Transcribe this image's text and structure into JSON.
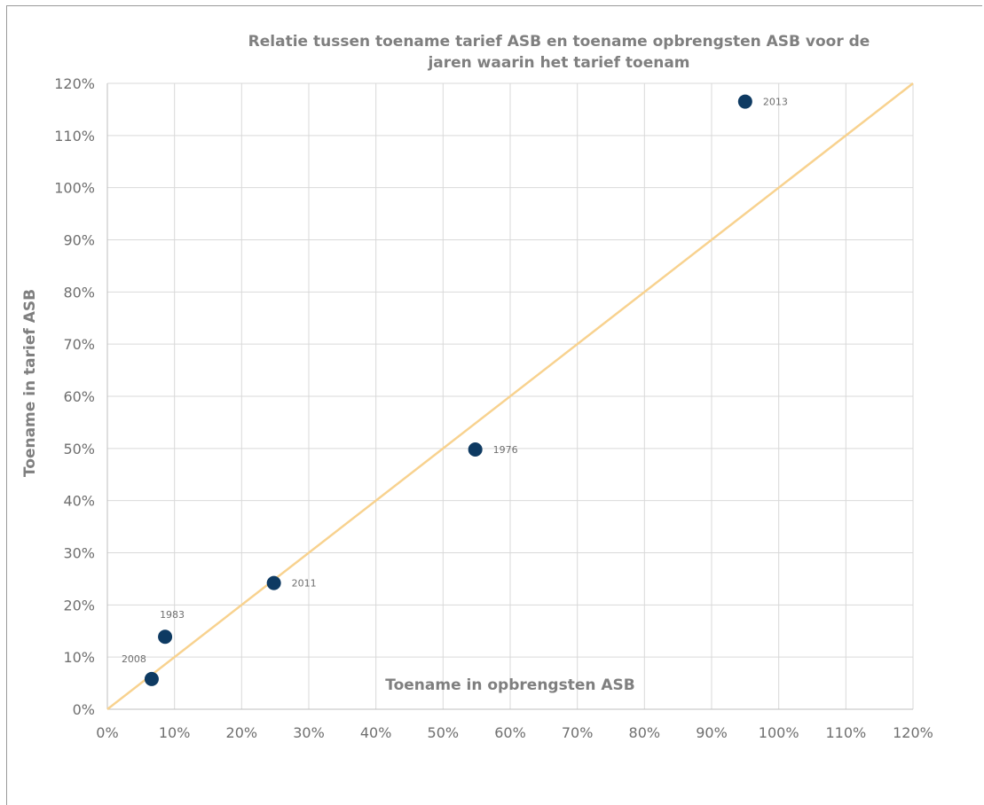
{
  "chart_data": {
    "type": "scatter",
    "title_lines": [
      "Relatie tussen toename tarief ASB en toename opbrengsten ASB voor de",
      "jaren waarin het tarief toenam"
    ],
    "xlabel": "Toename in opbrengsten ASB",
    "ylabel": "Toename in tarief ASB",
    "xlim": [
      0,
      1.2
    ],
    "ylim": [
      0,
      1.2
    ],
    "xticks": [
      0,
      0.1,
      0.2,
      0.3,
      0.4,
      0.5,
      0.6,
      0.7,
      0.8,
      0.9,
      1.0,
      1.1,
      1.2
    ],
    "yticks": [
      0,
      0.1,
      0.2,
      0.3,
      0.4,
      0.5,
      0.6,
      0.7,
      0.8,
      0.9,
      1.0,
      1.1,
      1.2
    ],
    "xtick_labels": [
      "0%",
      "10%",
      "20%",
      "30%",
      "40%",
      "50%",
      "60%",
      "70%",
      "80%",
      "90%",
      "100%",
      "110%",
      "120%"
    ],
    "ytick_labels": [
      "0%",
      "10%",
      "20%",
      "30%",
      "40%",
      "50%",
      "60%",
      "70%",
      "80%",
      "90%",
      "100%",
      "110%",
      "120%"
    ],
    "grid": true,
    "marker_color": "#0e3a62",
    "reference_line": {
      "from": [
        0,
        0
      ],
      "to": [
        1.2,
        1.2
      ],
      "color": "#f8d28f"
    },
    "points": [
      {
        "label": "2013",
        "x": 0.95,
        "y": 1.165,
        "label_pos": "right"
      },
      {
        "label": "1976",
        "x": 0.548,
        "y": 0.498,
        "label_pos": "right"
      },
      {
        "label": "2011",
        "x": 0.248,
        "y": 0.242,
        "label_pos": "right"
      },
      {
        "label": "1983",
        "x": 0.086,
        "y": 0.139,
        "label_pos": "above"
      },
      {
        "label": "2008",
        "x": 0.066,
        "y": 0.058,
        "label_pos": "above-left"
      }
    ]
  }
}
